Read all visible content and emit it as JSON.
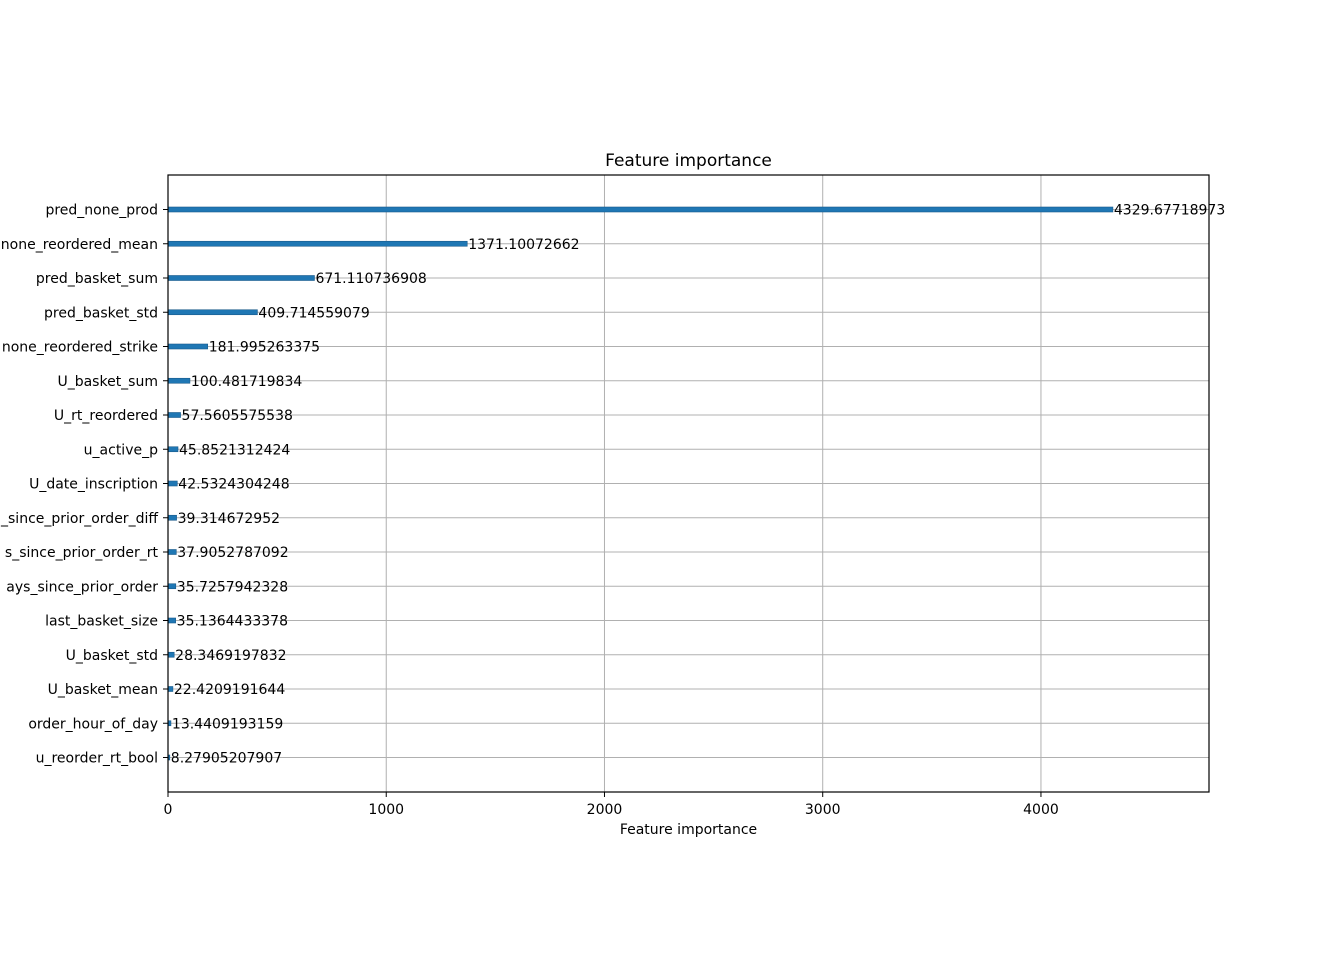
{
  "chart_data": {
    "type": "bar",
    "orientation": "horizontal",
    "title": "Feature importance",
    "xlabel": "Feature importance",
    "ylabel": "",
    "xlim": [
      0,
      4770
    ],
    "xticks": [
      0,
      1000,
      2000,
      3000,
      4000
    ],
    "xtick_labels": [
      "0",
      "1000",
      "2000",
      "3000",
      "4000"
    ],
    "grid": true,
    "bar_color": "#1f77b4",
    "categories": [
      "pred_none_prod",
      "none_reordered_mean",
      "pred_basket_sum",
      "pred_basket_std",
      "none_reordered_strike",
      "U_basket_sum",
      "U_rt_reordered",
      "u_active_p",
      "U_date_inscription",
      "_since_prior_order_diff",
      "s_since_prior_order_rt",
      "ays_since_prior_order",
      "last_basket_size",
      "U_basket_std",
      "U_basket_mean",
      "order_hour_of_day",
      "u_reorder_rt_bool"
    ],
    "values": [
      4329.67718973,
      1371.10072662,
      671.110736908,
      409.714559079,
      181.995263375,
      100.481719834,
      57.5605575538,
      45.8521312424,
      42.5324304248,
      39.314672952,
      37.9052787092,
      35.7257942328,
      35.1364433378,
      28.3469197832,
      22.4209191644,
      13.4409193159,
      8.27905207907
    ],
    "value_labels": [
      "4329.67718973",
      "1371.10072662",
      "671.110736908",
      "409.714559079",
      "181.995263375",
      "100.481719834",
      "57.5605575538",
      "45.8521312424",
      "42.5324304248",
      "39.314672952",
      "37.9052787092",
      "35.7257942328",
      "35.1364433378",
      "28.3469197832",
      "22.4209191644",
      "13.4409193159",
      "8.27905207907"
    ]
  }
}
